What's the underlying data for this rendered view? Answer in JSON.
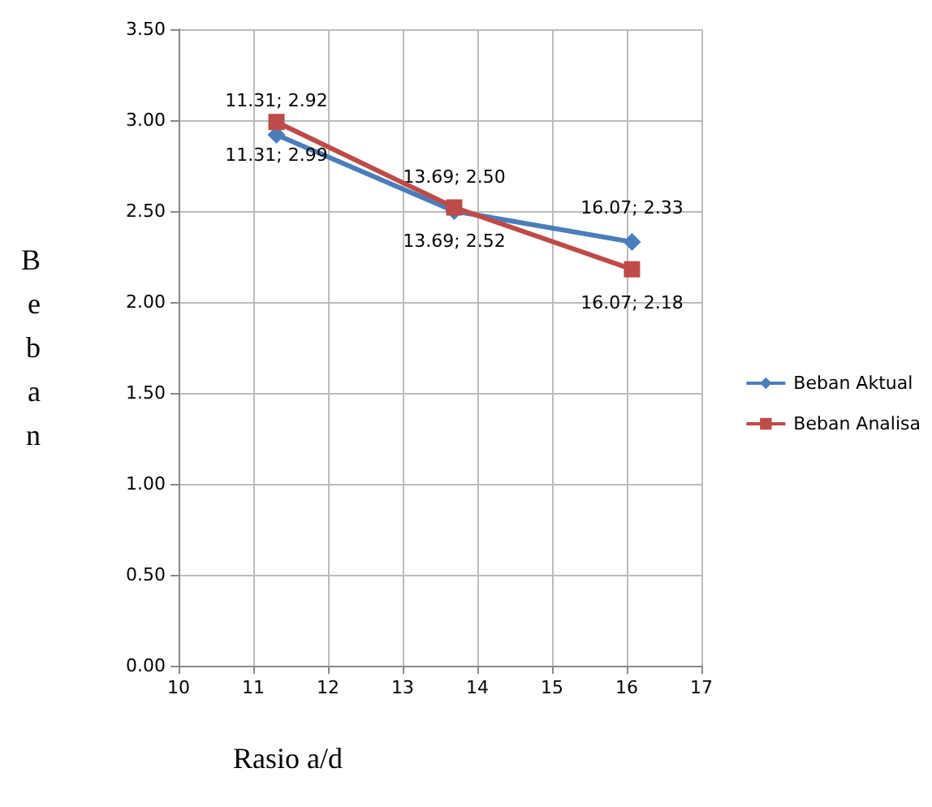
{
  "chart_data": {
    "type": "line",
    "xlabel": "Rasio a/d",
    "ylabel": "Beban",
    "series": [
      {
        "name": "Beban Aktual",
        "color": "#4a7ebb",
        "marker": "diamond",
        "x": [
          11.31,
          13.69,
          16.07
        ],
        "values": [
          2.92,
          2.5,
          2.33
        ],
        "value_labels": [
          "11.31; 2.92",
          "13.69; 2.50",
          "16.07; 2.33"
        ]
      },
      {
        "name": "Beban Analisa",
        "color": "#be4b48",
        "marker": "square",
        "x": [
          11.31,
          13.69,
          16.07
        ],
        "values": [
          2.99,
          2.52,
          2.18
        ],
        "value_labels": [
          "11.31; 2.99",
          "13.69; 2.52",
          "16.07; 2.18"
        ]
      }
    ],
    "xlim": [
      10,
      17
    ],
    "xticks": [
      10,
      11,
      12,
      13,
      14,
      15,
      16,
      17
    ],
    "ylim": [
      0,
      3.5
    ],
    "yticks": [
      {
        "value": 0,
        "label": "0.00"
      },
      {
        "value": 0.5,
        "label": "0.50"
      },
      {
        "value": 1,
        "label": "1.00"
      },
      {
        "value": 1.5,
        "label": "1.50"
      },
      {
        "value": 2,
        "label": "2.00"
      },
      {
        "value": 2.5,
        "label": "2.50"
      },
      {
        "value": 3,
        "label": "3.00"
      },
      {
        "value": 3.5,
        "label": "3.50"
      }
    ],
    "grid": true,
    "legend": "right"
  }
}
